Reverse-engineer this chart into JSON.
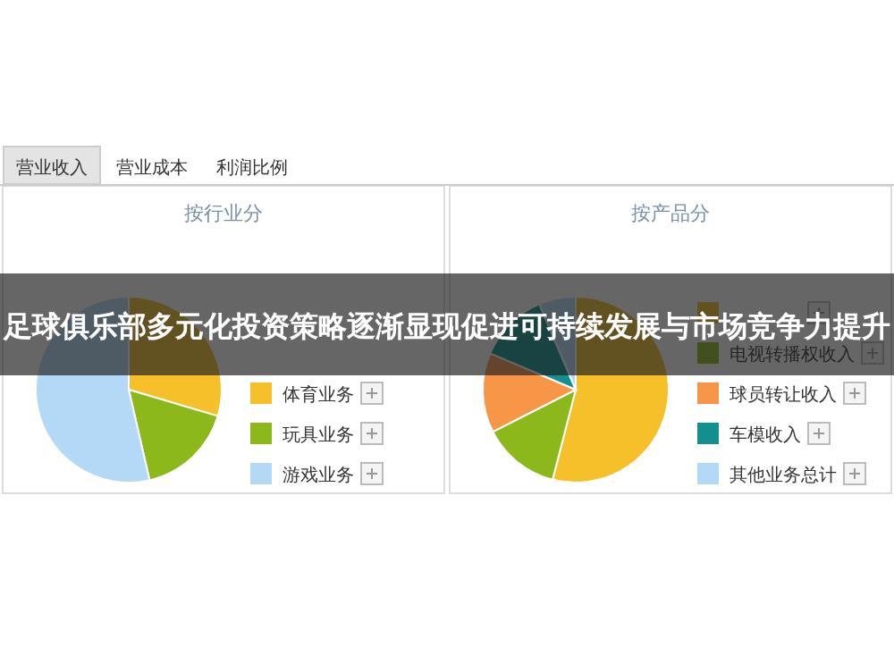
{
  "chart_data": [
    {
      "type": "other",
      "title": "足球俱乐部多元化投资策略逐渐显现促进可持续发展与市场竞争力提升",
      "annotations": [
        "营业收入",
        "营业成本",
        "利润比例"
      ]
    },
    {
      "type": "pie",
      "title": "按行业分",
      "categories": [
        "体育业务",
        "玩具业务",
        "游戏业务"
      ],
      "values": [
        29.6,
        16.8,
        53.6
      ],
      "colors": [
        "#f5c02a",
        "#8db81c",
        "#b3d9f7"
      ],
      "legend": "right"
    },
    {
      "type": "pie",
      "title": "按产品分",
      "categories": [
        null,
        "电视转播权收入",
        "球员转让收入",
        "车模收入",
        "其他业务总计"
      ],
      "values": [
        54,
        13.5,
        13.9,
        12.2,
        6.4
      ],
      "colors": [
        "#f5c02a",
        "#8db81c",
        "#f79646",
        "#11908f",
        "#b3d9f7"
      ],
      "legend": "right"
    }
  ]
}
